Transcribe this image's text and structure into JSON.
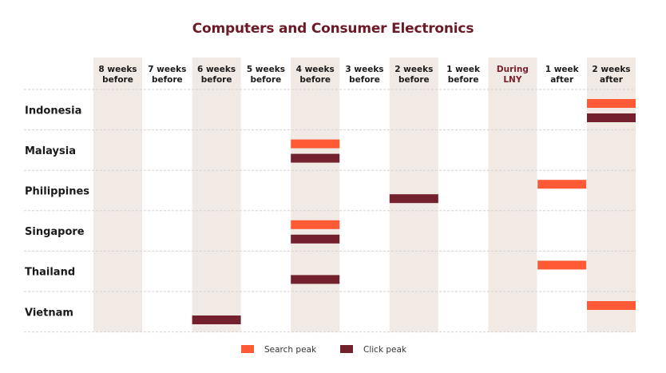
{
  "chart_data": {
    "type": "timeline-matrix",
    "title": "Computers and Consumer Electronics",
    "columns": [
      [
        "8 weeks",
        "before"
      ],
      [
        "7 weeks",
        "before"
      ],
      [
        "6 weeks",
        "before"
      ],
      [
        "5 weeks",
        "before"
      ],
      [
        "4 weeks",
        "before"
      ],
      [
        "3 weeks",
        "before"
      ],
      [
        "2 weeks",
        "before"
      ],
      [
        "1 week",
        "before"
      ],
      [
        "During",
        "LNY"
      ],
      [
        "1 week",
        "after"
      ],
      [
        "2 weeks",
        "after"
      ]
    ],
    "highlight_column": 8,
    "rows": [
      "Indonesia",
      "Malaysia",
      "Philippines",
      "Singapore",
      "Thailand",
      "Vietnam"
    ],
    "series": [
      {
        "name": "Search peak",
        "color": "#ff5a36",
        "points": [
          {
            "row": "Indonesia",
            "column": "2 weeks after"
          },
          {
            "row": "Malaysia",
            "column": "4 weeks before"
          },
          {
            "row": "Philippines",
            "column": "1 week after"
          },
          {
            "row": "Singapore",
            "column": "4 weeks before"
          },
          {
            "row": "Thailand",
            "column": "1 week after"
          },
          {
            "row": "Vietnam",
            "column": "2 weeks after"
          }
        ]
      },
      {
        "name": "Click peak",
        "color": "#74212e",
        "points": [
          {
            "row": "Indonesia",
            "column": "2 weeks after"
          },
          {
            "row": "Malaysia",
            "column": "4 weeks before"
          },
          {
            "row": "Philippines",
            "column": "2 weeks before"
          },
          {
            "row": "Singapore",
            "column": "4 weeks before"
          },
          {
            "row": "Thailand",
            "column": "4 weeks before"
          },
          {
            "row": "Vietnam",
            "column": "6 weeks before"
          }
        ]
      }
    ],
    "legend": [
      "Search peak",
      "Click peak"
    ],
    "legend_position": "bottom-center",
    "colors": {
      "band": "#f1e9e4",
      "title": "#6b1a26",
      "grid": "#d6d2d0"
    }
  }
}
